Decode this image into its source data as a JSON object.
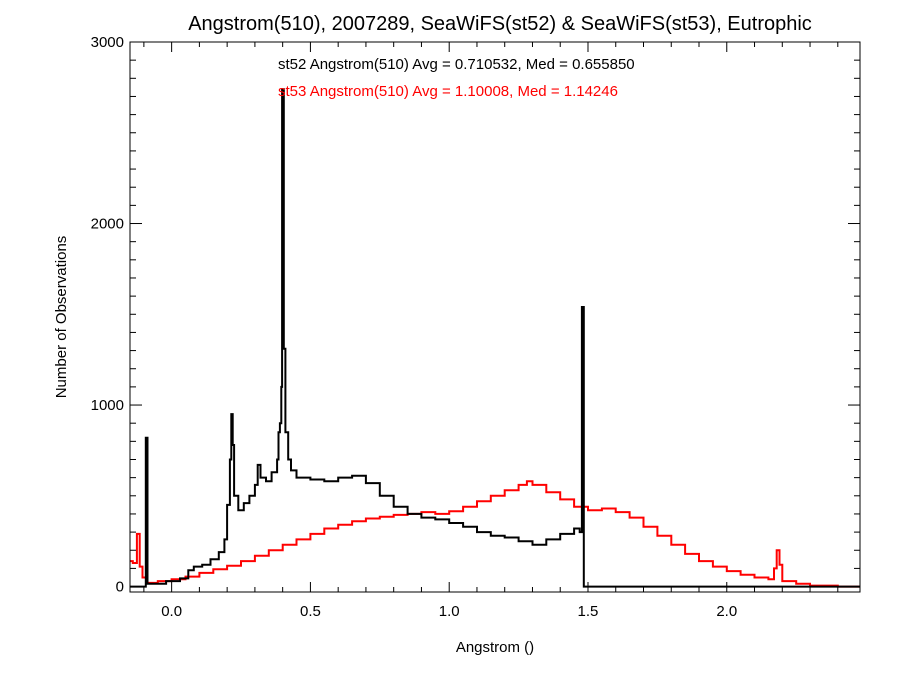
{
  "chart_data": {
    "type": "histogram",
    "title": "Angstrom(510), 2007289, SeaWiFS(st52) & SeaWiFS(st53), Eutrophic",
    "xlabel": "Angstrom ()",
    "ylabel": "Number of Observations",
    "xlim": [
      -0.15,
      2.48
    ],
    "ylim": [
      -30,
      3000
    ],
    "x_ticks": [
      0.0,
      0.5,
      1.0,
      1.5,
      2.0
    ],
    "x_tick_labels": [
      "0.0",
      "0.5",
      "1.0",
      "1.5",
      "2.0"
    ],
    "y_ticks": [
      0,
      1000,
      2000,
      3000
    ],
    "y_tick_labels": [
      "0",
      "1000",
      "2000",
      "3000"
    ],
    "grid": false,
    "annotations": [
      {
        "text": "st52 Angstrom(510) Avg = 0.710532, Med = 0.655850",
        "color": "#000000"
      },
      {
        "text": "st53 Angstrom(510) Avg = 1.10008, Med = 1.14246",
        "color": "#ff0000"
      }
    ],
    "series": [
      {
        "color": "#000000",
        "step": "post",
        "points": [
          [
            -0.15,
            0
          ],
          [
            -0.093,
            820
          ],
          [
            -0.087,
            15
          ],
          [
            -0.02,
            30
          ],
          [
            0.03,
            45
          ],
          [
            0.06,
            90
          ],
          [
            0.08,
            110
          ],
          [
            0.11,
            120
          ],
          [
            0.14,
            150
          ],
          [
            0.17,
            190
          ],
          [
            0.19,
            260
          ],
          [
            0.2,
            450
          ],
          [
            0.21,
            700
          ],
          [
            0.215,
            950
          ],
          [
            0.22,
            780
          ],
          [
            0.225,
            500
          ],
          [
            0.24,
            420
          ],
          [
            0.26,
            460
          ],
          [
            0.28,
            500
          ],
          [
            0.3,
            560
          ],
          [
            0.31,
            670
          ],
          [
            0.32,
            600
          ],
          [
            0.34,
            580
          ],
          [
            0.36,
            630
          ],
          [
            0.38,
            700
          ],
          [
            0.385,
            850
          ],
          [
            0.39,
            900
          ],
          [
            0.395,
            1100
          ],
          [
            0.398,
            2740
          ],
          [
            0.404,
            1310
          ],
          [
            0.41,
            850
          ],
          [
            0.42,
            700
          ],
          [
            0.43,
            640
          ],
          [
            0.45,
            600
          ],
          [
            0.5,
            590
          ],
          [
            0.55,
            580
          ],
          [
            0.6,
            600
          ],
          [
            0.65,
            610
          ],
          [
            0.7,
            570
          ],
          [
            0.75,
            500
          ],
          [
            0.8,
            440
          ],
          [
            0.85,
            400
          ],
          [
            0.9,
            380
          ],
          [
            0.95,
            370
          ],
          [
            1.0,
            350
          ],
          [
            1.05,
            330
          ],
          [
            1.1,
            300
          ],
          [
            1.15,
            280
          ],
          [
            1.2,
            270
          ],
          [
            1.25,
            250
          ],
          [
            1.3,
            230
          ],
          [
            1.35,
            260
          ],
          [
            1.4,
            290
          ],
          [
            1.45,
            320
          ],
          [
            1.47,
            300
          ],
          [
            1.478,
            1540
          ],
          [
            1.485,
            0
          ],
          [
            2.48,
            0
          ]
        ]
      },
      {
        "color": "#ff0000",
        "step": "post",
        "points": [
          [
            -0.15,
            140
          ],
          [
            -0.14,
            130
          ],
          [
            -0.125,
            290
          ],
          [
            -0.115,
            110
          ],
          [
            -0.105,
            50
          ],
          [
            -0.09,
            20
          ],
          [
            -0.05,
            30
          ],
          [
            0.0,
            40
          ],
          [
            0.05,
            55
          ],
          [
            0.1,
            75
          ],
          [
            0.15,
            95
          ],
          [
            0.2,
            115
          ],
          [
            0.25,
            140
          ],
          [
            0.3,
            170
          ],
          [
            0.35,
            200
          ],
          [
            0.4,
            230
          ],
          [
            0.45,
            260
          ],
          [
            0.5,
            290
          ],
          [
            0.55,
            320
          ],
          [
            0.6,
            340
          ],
          [
            0.65,
            360
          ],
          [
            0.7,
            375
          ],
          [
            0.75,
            385
          ],
          [
            0.8,
            395
          ],
          [
            0.85,
            400
          ],
          [
            0.9,
            410
          ],
          [
            0.95,
            400
          ],
          [
            1.0,
            415
          ],
          [
            1.05,
            440
          ],
          [
            1.1,
            470
          ],
          [
            1.15,
            500
          ],
          [
            1.2,
            530
          ],
          [
            1.25,
            560
          ],
          [
            1.28,
            580
          ],
          [
            1.3,
            560
          ],
          [
            1.35,
            520
          ],
          [
            1.4,
            480
          ],
          [
            1.45,
            440
          ],
          [
            1.5,
            420
          ],
          [
            1.55,
            430
          ],
          [
            1.6,
            410
          ],
          [
            1.65,
            380
          ],
          [
            1.7,
            330
          ],
          [
            1.75,
            280
          ],
          [
            1.8,
            230
          ],
          [
            1.85,
            180
          ],
          [
            1.9,
            140
          ],
          [
            1.95,
            110
          ],
          [
            2.0,
            85
          ],
          [
            2.05,
            65
          ],
          [
            2.1,
            50
          ],
          [
            2.15,
            40
          ],
          [
            2.17,
            100
          ],
          [
            2.18,
            200
          ],
          [
            2.19,
            120
          ],
          [
            2.2,
            30
          ],
          [
            2.25,
            15
          ],
          [
            2.3,
            5
          ],
          [
            2.4,
            0
          ],
          [
            2.48,
            0
          ]
        ]
      }
    ]
  }
}
